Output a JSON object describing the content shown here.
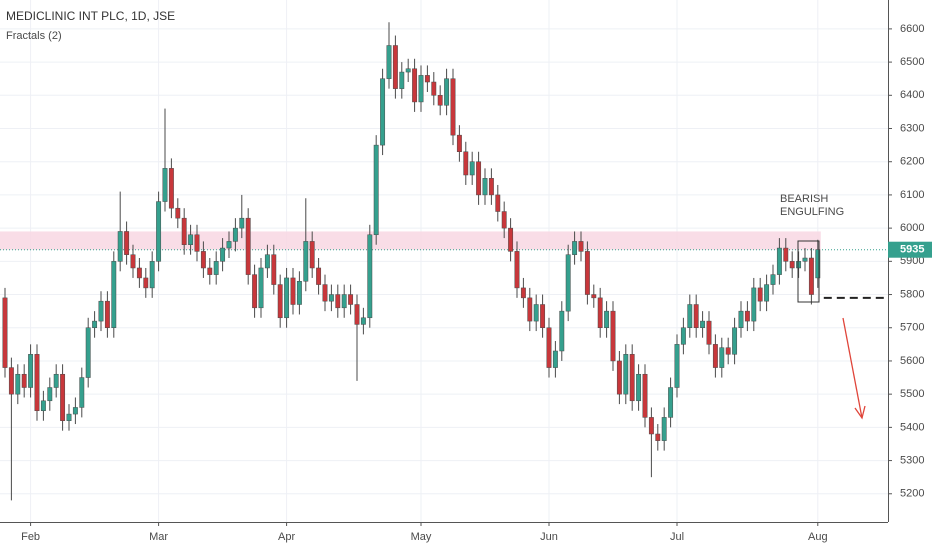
{
  "chart_data": {
    "type": "candlestick",
    "title": "MEDICLINIC INT PLC, 1D, JSE",
    "subtitle": "Fractals (2)",
    "annotation": [
      "BEARISH",
      "ENGULFING"
    ],
    "up_color": "#35a08e",
    "down_color": "#c8373b",
    "grid": true,
    "xlim": [
      -0.78,
      137.97
    ],
    "xticks": [
      {
        "value": 4,
        "label": "Feb"
      },
      {
        "value": 24,
        "label": "Mar"
      },
      {
        "value": 44,
        "label": "Apr"
      },
      {
        "value": 65,
        "label": "May"
      },
      {
        "value": 85,
        "label": "Jun"
      },
      {
        "value": 105,
        "label": "Jul"
      },
      {
        "value": 127,
        "label": "Aug"
      }
    ],
    "ylim": [
      5115,
      6687
    ],
    "yticks": [
      5200,
      5300,
      5400,
      5500,
      5600,
      5700,
      5800,
      5900,
      6000,
      6100,
      6200,
      6300,
      6400,
      6500,
      6600
    ],
    "zone": [
      5935,
      5990
    ],
    "last_price": 5935,
    "support_level": 5790,
    "open": [
      5790,
      5580,
      5500,
      5560,
      5520,
      5620,
      5450,
      5480,
      5520,
      5560,
      5420,
      5440,
      5460,
      5550,
      5700,
      5720,
      5780,
      5700,
      5900,
      5990,
      5920,
      5880,
      5850,
      5820,
      5900,
      6080,
      6180,
      6060,
      6030,
      5950,
      5980,
      5930,
      5880,
      5860,
      5900,
      5940,
      5960,
      6000,
      6030,
      5860,
      5760,
      5880,
      5920,
      5830,
      5730,
      5850,
      5770,
      5840,
      5960,
      5880,
      5830,
      5780,
      5800,
      5760,
      5800,
      5770,
      5710,
      5730,
      5980,
      6250,
      6450,
      6550,
      6420,
      6470,
      6480,
      6380,
      6460,
      6440,
      6400,
      6370,
      6450,
      6280,
      6230,
      6160,
      6200,
      6100,
      6150,
      6100,
      6050,
      6000,
      5930,
      5820,
      5790,
      5720,
      5770,
      5700,
      5580,
      5630,
      5750,
      5920,
      5960,
      5930,
      5800,
      5790,
      5700,
      5750,
      5600,
      5500,
      5620,
      5480,
      5560,
      5430,
      5380,
      5360,
      5430,
      5520,
      5650,
      5700,
      5770,
      5700,
      5720,
      5650,
      5580,
      5640,
      5620,
      5700,
      5750,
      5720,
      5820,
      5780,
      5830,
      5860,
      5940,
      5900,
      5880,
      5900,
      5910,
      5850
    ],
    "high": [
      5820,
      5610,
      5590,
      5590,
      5650,
      5650,
      5510,
      5550,
      5590,
      5590,
      5470,
      5490,
      5580,
      5730,
      5750,
      5810,
      5810,
      5930,
      6110,
      6020,
      5950,
      5910,
      5880,
      5930,
      6110,
      6360,
      6210,
      6090,
      6060,
      6010,
      6010,
      5960,
      5910,
      5930,
      5970,
      5990,
      6030,
      6100,
      6060,
      5890,
      5910,
      5950,
      5950,
      5860,
      5880,
      5880,
      5870,
      6090,
      5990,
      5910,
      5860,
      5830,
      5830,
      5830,
      5830,
      5800,
      5760,
      6010,
      6280,
      6480,
      6620,
      6580,
      6500,
      6510,
      6510,
      6490,
      6490,
      6470,
      6430,
      6480,
      6480,
      6310,
      6260,
      6230,
      6230,
      6180,
      6180,
      6130,
      6080,
      6030,
      5960,
      5850,
      5820,
      5800,
      5800,
      5730,
      5660,
      5780,
      5950,
      5990,
      5990,
      5960,
      5830,
      5820,
      5780,
      5780,
      5630,
      5650,
      5650,
      5590,
      5590,
      5460,
      5410,
      5460,
      5550,
      5680,
      5730,
      5800,
      5800,
      5750,
      5750,
      5680,
      5670,
      5670,
      5730,
      5780,
      5780,
      5850,
      5850,
      5860,
      5890,
      5970,
      5970,
      5930,
      5930,
      5940,
      5940,
      5965
    ],
    "low": [
      5550,
      5180,
      5470,
      5490,
      5490,
      5420,
      5420,
      5450,
      5490,
      5390,
      5390,
      5410,
      5430,
      5520,
      5670,
      5690,
      5670,
      5670,
      5870,
      5890,
      5850,
      5820,
      5790,
      5790,
      5870,
      6050,
      6030,
      6000,
      5920,
      5920,
      5900,
      5850,
      5830,
      5830,
      5870,
      5910,
      5930,
      5970,
      5830,
      5730,
      5730,
      5850,
      5800,
      5700,
      5700,
      5740,
      5740,
      5810,
      5850,
      5800,
      5750,
      5750,
      5730,
      5730,
      5740,
      5540,
      5680,
      5700,
      5950,
      6220,
      6420,
      6390,
      6390,
      6440,
      6350,
      6350,
      6410,
      6370,
      6340,
      6340,
      6250,
      6200,
      6130,
      6130,
      6070,
      6070,
      6070,
      6020,
      5970,
      5900,
      5790,
      5760,
      5690,
      5690,
      5670,
      5550,
      5550,
      5600,
      5720,
      5890,
      5900,
      5770,
      5760,
      5670,
      5670,
      5570,
      5470,
      5470,
      5450,
      5450,
      5400,
      5250,
      5330,
      5330,
      5400,
      5490,
      5620,
      5670,
      5670,
      5670,
      5620,
      5550,
      5550,
      5590,
      5590,
      5670,
      5690,
      5690,
      5750,
      5750,
      5800,
      5830,
      5870,
      5850,
      5850,
      5870,
      5770,
      5820
    ],
    "close": [
      5580,
      5500,
      5560,
      5520,
      5620,
      5450,
      5480,
      5520,
      5560,
      5420,
      5440,
      5460,
      5550,
      5700,
      5720,
      5780,
      5700,
      5900,
      5990,
      5920,
      5880,
      5850,
      5820,
      5900,
      6080,
      6180,
      6060,
      6030,
      5950,
      5980,
      5930,
      5880,
      5860,
      5900,
      5940,
      5960,
      6000,
      6030,
      5860,
      5760,
      5880,
      5920,
      5830,
      5730,
      5850,
      5770,
      5840,
      5960,
      5880,
      5830,
      5780,
      5800,
      5760,
      5800,
      5770,
      5710,
      5730,
      5980,
      6250,
      6450,
      6550,
      6420,
      6470,
      6480,
      6380,
      6460,
      6440,
      6400,
      6370,
      6450,
      6280,
      6230,
      6160,
      6200,
      6100,
      6150,
      6100,
      6050,
      6000,
      5930,
      5820,
      5790,
      5720,
      5770,
      5700,
      5580,
      5630,
      5750,
      5920,
      5960,
      5930,
      5800,
      5790,
      5700,
      5750,
      5600,
      5500,
      5620,
      5480,
      5560,
      5430,
      5380,
      5360,
      5430,
      5520,
      5650,
      5700,
      5770,
      5700,
      5720,
      5650,
      5580,
      5640,
      5620,
      5700,
      5750,
      5720,
      5820,
      5780,
      5830,
      5860,
      5940,
      5900,
      5880,
      5900,
      5910,
      5800,
      5935
    ]
  }
}
